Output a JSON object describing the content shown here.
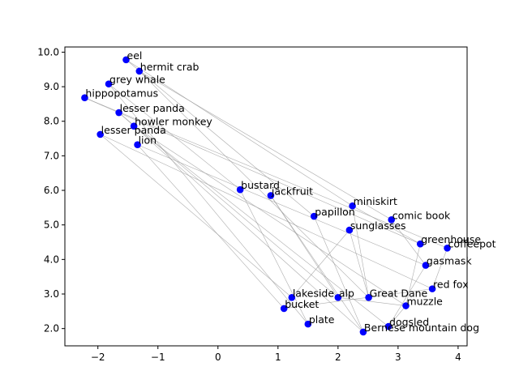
{
  "chart_data": {
    "type": "scatter",
    "title": "",
    "xlabel": "",
    "ylabel": "",
    "xlim": [
      -2.55,
      4.15
    ],
    "ylim": [
      1.5,
      10.15
    ],
    "grid": false,
    "xticks": [
      -2,
      -1,
      0,
      1,
      2,
      3,
      4
    ],
    "yticks": [
      2,
      3,
      4,
      5,
      6,
      7,
      8,
      9,
      10
    ],
    "point_color": "#0000ff",
    "edge_color": "#999999",
    "points": [
      {
        "label": "eel",
        "x": -1.53,
        "y": 9.78
      },
      {
        "label": "hermit crab",
        "x": -1.31,
        "y": 9.45
      },
      {
        "label": "grey whale",
        "x": -1.82,
        "y": 9.08
      },
      {
        "label": "hippopotamus",
        "x": -2.22,
        "y": 8.68
      },
      {
        "label": "lesser panda",
        "x": -1.65,
        "y": 8.25
      },
      {
        "label": "howler monkey",
        "x": -1.4,
        "y": 7.86
      },
      {
        "label": "lesser panda",
        "x": -1.96,
        "y": 7.62
      },
      {
        "label": "lion",
        "x": -1.34,
        "y": 7.32
      },
      {
        "label": "bustard",
        "x": 0.37,
        "y": 6.02
      },
      {
        "label": "jackfruit",
        "x": 0.88,
        "y": 5.85
      },
      {
        "label": "miniskirt",
        "x": 2.24,
        "y": 5.55
      },
      {
        "label": "comic book",
        "x": 2.89,
        "y": 5.15
      },
      {
        "label": "papillon",
        "x": 1.6,
        "y": 5.25
      },
      {
        "label": "sunglasses",
        "x": 2.19,
        "y": 4.85
      },
      {
        "label": "greenhouse",
        "x": 3.37,
        "y": 4.45
      },
      {
        "label": "coffeepot",
        "x": 3.82,
        "y": 4.33
      },
      {
        "label": "gasmask",
        "x": 3.46,
        "y": 3.83
      },
      {
        "label": "red fox",
        "x": 3.57,
        "y": 3.15
      },
      {
        "label": "lakeside",
        "x": 1.23,
        "y": 2.9
      },
      {
        "label": "alp",
        "x": 2.0,
        "y": 2.9
      },
      {
        "label": "Great Dane",
        "x": 2.51,
        "y": 2.9
      },
      {
        "label": "muzzle",
        "x": 3.13,
        "y": 2.66
      },
      {
        "label": "bucket",
        "x": 1.1,
        "y": 2.58
      },
      {
        "label": "plate",
        "x": 1.5,
        "y": 2.13
      },
      {
        "label": "dogsled",
        "x": 2.84,
        "y": 2.06
      },
      {
        "label": "Bernese mountain dog",
        "x": 2.42,
        "y": 1.9
      }
    ],
    "edges": [
      [
        0,
        12
      ],
      [
        0,
        10
      ],
      [
        1,
        11
      ],
      [
        1,
        20
      ],
      [
        2,
        23
      ],
      [
        2,
        8
      ],
      [
        3,
        15
      ],
      [
        3,
        14
      ],
      [
        4,
        25
      ],
      [
        4,
        19
      ],
      [
        5,
        21
      ],
      [
        5,
        24
      ],
      [
        6,
        17
      ],
      [
        6,
        18
      ],
      [
        7,
        16
      ],
      [
        7,
        22
      ],
      [
        8,
        23
      ],
      [
        9,
        19
      ],
      [
        9,
        25
      ],
      [
        10,
        20
      ],
      [
        10,
        14
      ],
      [
        11,
        16
      ],
      [
        12,
        25
      ],
      [
        13,
        18
      ],
      [
        13,
        20
      ],
      [
        14,
        21
      ],
      [
        15,
        17
      ],
      [
        16,
        24
      ],
      [
        17,
        22
      ],
      [
        18,
        22
      ],
      [
        19,
        21
      ],
      [
        24,
        21
      ]
    ]
  }
}
